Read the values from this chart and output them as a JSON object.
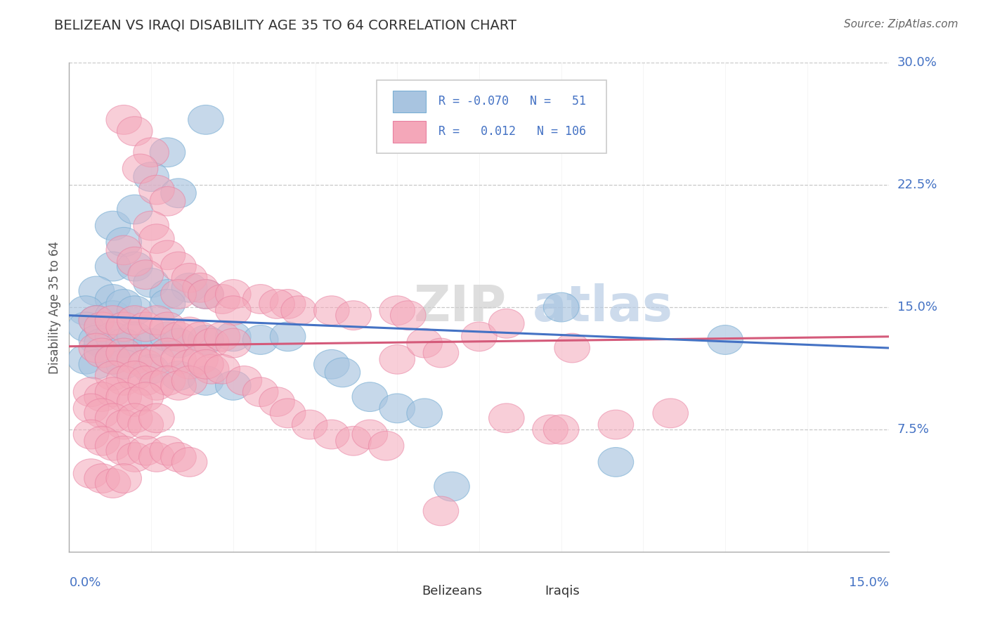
{
  "title": "BELIZEAN VS IRAQI DISABILITY AGE 35 TO 64 CORRELATION CHART",
  "source": "Source: ZipAtlas.com",
  "ylabel": "Disability Age 35 to 64",
  "xmin": 0.0,
  "xmax": 0.15,
  "ymin": 0.0,
  "ymax": 0.3,
  "yticks": [
    0.075,
    0.15,
    0.225,
    0.3
  ],
  "ytick_labels": [
    "7.5%",
    "15.0%",
    "22.5%",
    "30.0%"
  ],
  "series1_name": "Belizeans",
  "series1_color": "#a8c4e0",
  "series1_edge_color": "#7aafd4",
  "series1_line_color": "#4472c4",
  "series2_name": "Iraqis",
  "series2_color": "#f4a7b9",
  "series2_edge_color": "#e87fa0",
  "series2_line_color": "#d45a7a",
  "watermark_zip": "ZIP",
  "watermark_atlas": "atlas",
  "belizean_points": [
    [
      0.008,
      0.2
    ],
    [
      0.018,
      0.245
    ],
    [
      0.025,
      0.265
    ],
    [
      0.012,
      0.21
    ],
    [
      0.01,
      0.19
    ],
    [
      0.015,
      0.23
    ],
    [
      0.02,
      0.22
    ],
    [
      0.008,
      0.175
    ],
    [
      0.012,
      0.175
    ],
    [
      0.005,
      0.16
    ],
    [
      0.008,
      0.155
    ],
    [
      0.015,
      0.165
    ],
    [
      0.018,
      0.158
    ],
    [
      0.022,
      0.162
    ],
    [
      0.025,
      0.158
    ],
    [
      0.003,
      0.148
    ],
    [
      0.005,
      0.142
    ],
    [
      0.008,
      0.145
    ],
    [
      0.01,
      0.152
    ],
    [
      0.012,
      0.148
    ],
    [
      0.018,
      0.152
    ],
    [
      0.003,
      0.138
    ],
    [
      0.005,
      0.13
    ],
    [
      0.006,
      0.128
    ],
    [
      0.008,
      0.132
    ],
    [
      0.01,
      0.128
    ],
    [
      0.012,
      0.132
    ],
    [
      0.015,
      0.128
    ],
    [
      0.018,
      0.132
    ],
    [
      0.02,
      0.128
    ],
    [
      0.025,
      0.13
    ],
    [
      0.03,
      0.132
    ],
    [
      0.035,
      0.13
    ],
    [
      0.04,
      0.132
    ],
    [
      0.003,
      0.118
    ],
    [
      0.005,
      0.115
    ],
    [
      0.008,
      0.118
    ],
    [
      0.01,
      0.115
    ],
    [
      0.015,
      0.112
    ],
    [
      0.02,
      0.108
    ],
    [
      0.025,
      0.105
    ],
    [
      0.03,
      0.102
    ],
    [
      0.048,
      0.115
    ],
    [
      0.05,
      0.11
    ],
    [
      0.055,
      0.095
    ],
    [
      0.06,
      0.088
    ],
    [
      0.065,
      0.085
    ],
    [
      0.09,
      0.15
    ],
    [
      0.1,
      0.055
    ],
    [
      0.12,
      0.13
    ],
    [
      0.07,
      0.04
    ]
  ],
  "iraqi_points": [
    [
      0.01,
      0.265
    ],
    [
      0.012,
      0.258
    ],
    [
      0.015,
      0.245
    ],
    [
      0.013,
      0.235
    ],
    [
      0.016,
      0.222
    ],
    [
      0.018,
      0.215
    ],
    [
      0.015,
      0.2
    ],
    [
      0.016,
      0.192
    ],
    [
      0.01,
      0.185
    ],
    [
      0.012,
      0.178
    ],
    [
      0.018,
      0.182
    ],
    [
      0.02,
      0.175
    ],
    [
      0.014,
      0.17
    ],
    [
      0.022,
      0.168
    ],
    [
      0.024,
      0.162
    ],
    [
      0.02,
      0.158
    ],
    [
      0.025,
      0.158
    ],
    [
      0.028,
      0.155
    ],
    [
      0.03,
      0.158
    ],
    [
      0.035,
      0.155
    ],
    [
      0.04,
      0.152
    ],
    [
      0.03,
      0.148
    ],
    [
      0.038,
      0.152
    ],
    [
      0.042,
      0.148
    ],
    [
      0.048,
      0.148
    ],
    [
      0.052,
      0.145
    ],
    [
      0.06,
      0.148
    ],
    [
      0.062,
      0.145
    ],
    [
      0.005,
      0.142
    ],
    [
      0.006,
      0.138
    ],
    [
      0.008,
      0.142
    ],
    [
      0.01,
      0.138
    ],
    [
      0.012,
      0.142
    ],
    [
      0.014,
      0.138
    ],
    [
      0.016,
      0.142
    ],
    [
      0.018,
      0.138
    ],
    [
      0.02,
      0.132
    ],
    [
      0.022,
      0.135
    ],
    [
      0.024,
      0.132
    ],
    [
      0.026,
      0.128
    ],
    [
      0.028,
      0.132
    ],
    [
      0.03,
      0.128
    ],
    [
      0.005,
      0.125
    ],
    [
      0.006,
      0.122
    ],
    [
      0.008,
      0.118
    ],
    [
      0.01,
      0.122
    ],
    [
      0.012,
      0.118
    ],
    [
      0.014,
      0.115
    ],
    [
      0.016,
      0.118
    ],
    [
      0.018,
      0.122
    ],
    [
      0.02,
      0.118
    ],
    [
      0.022,
      0.115
    ],
    [
      0.024,
      0.118
    ],
    [
      0.026,
      0.112
    ],
    [
      0.008,
      0.108
    ],
    [
      0.01,
      0.105
    ],
    [
      0.012,
      0.108
    ],
    [
      0.014,
      0.105
    ],
    [
      0.016,
      0.102
    ],
    [
      0.018,
      0.105
    ],
    [
      0.02,
      0.102
    ],
    [
      0.022,
      0.105
    ],
    [
      0.004,
      0.098
    ],
    [
      0.006,
      0.095
    ],
    [
      0.008,
      0.098
    ],
    [
      0.01,
      0.095
    ],
    [
      0.012,
      0.092
    ],
    [
      0.014,
      0.095
    ],
    [
      0.004,
      0.088
    ],
    [
      0.006,
      0.085
    ],
    [
      0.008,
      0.082
    ],
    [
      0.01,
      0.078
    ],
    [
      0.012,
      0.082
    ],
    [
      0.014,
      0.078
    ],
    [
      0.016,
      0.082
    ],
    [
      0.004,
      0.072
    ],
    [
      0.006,
      0.068
    ],
    [
      0.008,
      0.065
    ],
    [
      0.01,
      0.062
    ],
    [
      0.012,
      0.058
    ],
    [
      0.014,
      0.062
    ],
    [
      0.016,
      0.058
    ],
    [
      0.018,
      0.062
    ],
    [
      0.02,
      0.058
    ],
    [
      0.022,
      0.055
    ],
    [
      0.004,
      0.048
    ],
    [
      0.006,
      0.045
    ],
    [
      0.008,
      0.042
    ],
    [
      0.01,
      0.045
    ],
    [
      0.025,
      0.115
    ],
    [
      0.028,
      0.112
    ],
    [
      0.032,
      0.105
    ],
    [
      0.035,
      0.098
    ],
    [
      0.038,
      0.092
    ],
    [
      0.04,
      0.085
    ],
    [
      0.044,
      0.078
    ],
    [
      0.048,
      0.072
    ],
    [
      0.052,
      0.068
    ],
    [
      0.055,
      0.072
    ],
    [
      0.058,
      0.065
    ],
    [
      0.06,
      0.118
    ],
    [
      0.065,
      0.128
    ],
    [
      0.068,
      0.122
    ],
    [
      0.075,
      0.132
    ],
    [
      0.08,
      0.082
    ],
    [
      0.088,
      0.075
    ],
    [
      0.092,
      0.125
    ],
    [
      0.1,
      0.078
    ],
    [
      0.11,
      0.085
    ],
    [
      0.08,
      0.14
    ],
    [
      0.09,
      0.075
    ],
    [
      0.068,
      0.025
    ]
  ]
}
